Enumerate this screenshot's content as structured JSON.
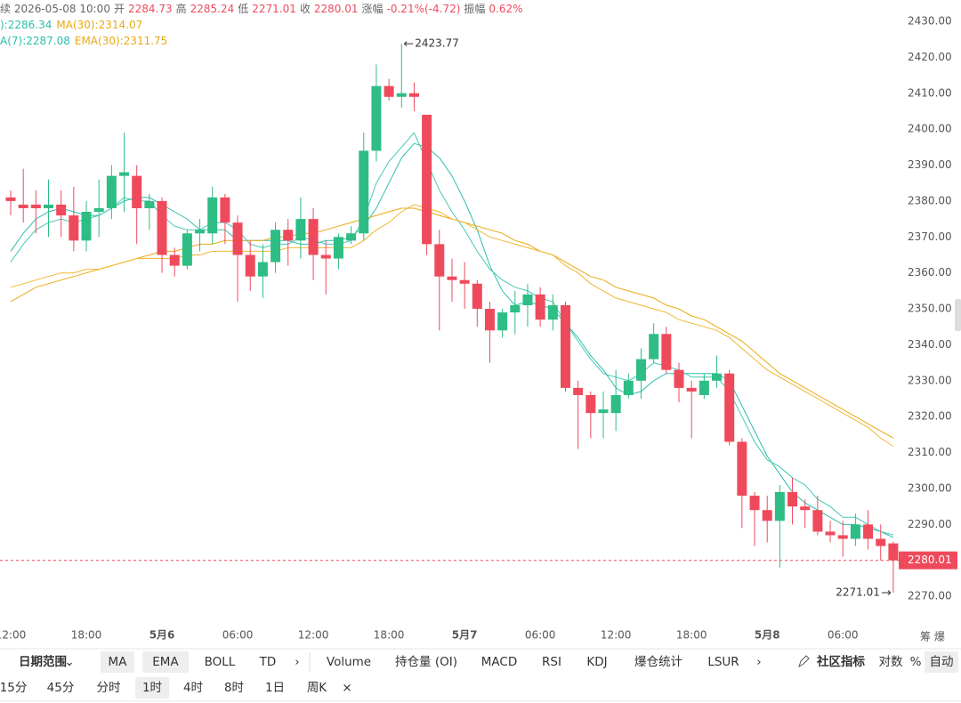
{
  "chart_data": {
    "type": "candlestick",
    "info": {
      "time": "续 2026-05-08 10:00",
      "open_label": "开",
      "high_label": "高",
      "low_label": "低",
      "close_label": "收",
      "change_label": "涨幅",
      "change": "-0.21%(-4.72)",
      "amplitude_label": "振幅",
      "amplitude": "0.62%"
    },
    "legend_rows": [
      [
        {
          "text": "):2286.34",
          "color": "#2cbfae"
        },
        {
          "text": "MA(30):2314.07",
          "color": "#e9a911"
        }
      ],
      [
        {
          "text": "A(7):2287.08",
          "color": "#2cbfae"
        },
        {
          "text": "EMA(30):2311.75",
          "color": "#e9a911"
        }
      ]
    ],
    "categories": [
      "12:00",
      null,
      null,
      null,
      null,
      null,
      "18:00",
      null,
      null,
      null,
      null,
      null,
      "5月6",
      null,
      null,
      null,
      null,
      null,
      "06:00",
      null,
      null,
      null,
      null,
      null,
      "12:00",
      null,
      null,
      null,
      null,
      null,
      "18:00",
      null,
      null,
      null,
      null,
      null,
      "5月7",
      null,
      null,
      null,
      null,
      null,
      "06:00",
      null,
      null,
      null,
      null,
      null,
      "12:00",
      null,
      null,
      null,
      null,
      null,
      "18:00",
      null,
      null,
      null,
      null,
      null,
      "5月8",
      null,
      null,
      null,
      null,
      null,
      "06:00",
      null,
      null,
      null,
      null
    ],
    "open": [
      2381,
      2379,
      2379,
      2378,
      2379,
      2376,
      2369,
      2377,
      2378,
      2387,
      2387,
      2378,
      2380,
      2365,
      2362,
      2371,
      2371,
      2381,
      2374,
      2365,
      2359,
      2363,
      2372,
      2369,
      2375,
      2365,
      2364,
      2369,
      2371,
      2394,
      2412,
      2409,
      2410,
      2404,
      2368,
      2359,
      2358,
      2357,
      2350,
      2344,
      2349,
      2351,
      2354,
      2347,
      2351,
      2328,
      2326,
      2321,
      2321,
      2326,
      2330,
      2336,
      2343,
      2333,
      2328,
      2326,
      2330,
      2332,
      2313,
      2298,
      2294,
      2291,
      2299,
      2295,
      2294,
      2288,
      2287,
      2286,
      2290,
      2286,
      2284.73
    ],
    "high": [
      2383,
      2389,
      2383,
      2386,
      2383,
      2384,
      2380,
      2386,
      2390,
      2399,
      2390,
      2382,
      2381,
      2367,
      2372,
      2375,
      2384,
      2382,
      2376,
      2369,
      2368,
      2374,
      2375,
      2381,
      2378,
      2369,
      2371,
      2373,
      2399,
      2418,
      2414,
      2423.77,
      2413,
      2404,
      2372,
      2364,
      2363,
      2358,
      2352,
      2350,
      2355,
      2357,
      2356,
      2354,
      2352,
      2330,
      2327,
      2327,
      2333,
      2332,
      2339,
      2346,
      2345,
      2335,
      2330,
      2332,
      2337,
      2333,
      2314,
      2299,
      2298,
      2301,
      2303,
      2297,
      2298,
      2291,
      2291,
      2293,
      2294,
      2290,
      2285.24
    ],
    "low": [
      2376,
      2374,
      2371,
      2370,
      2370,
      2366,
      2366,
      2370,
      2375,
      2377,
      2368,
      2372,
      2360,
      2359,
      2361,
      2366,
      2368,
      2368,
      2352,
      2355,
      2353,
      2360,
      2362,
      2364,
      2358,
      2354,
      2361,
      2368,
      2369,
      2391,
      2408,
      2406,
      2405,
      2365,
      2344,
      2352,
      2350,
      2345,
      2335,
      2342,
      2343,
      2345,
      2345,
      2344,
      2327,
      2311,
      2314,
      2314,
      2316,
      2325,
      2325,
      2335,
      2332,
      2324,
      2314,
      2325,
      2328,
      2312,
      2289,
      2284,
      2285,
      2278,
      2290,
      2289,
      2287,
      2285,
      2281,
      2284,
      2283,
      2280,
      2271.01
    ],
    "close": [
      2380,
      2378,
      2378,
      2379,
      2376,
      2369,
      2377,
      2378,
      2387,
      2388,
      2378,
      2380,
      2365,
      2362,
      2371,
      2372,
      2381,
      2374,
      2365,
      2359,
      2363,
      2372,
      2369,
      2375,
      2365,
      2364,
      2370,
      2371,
      2394,
      2412,
      2409,
      2410,
      2409,
      2368,
      2359,
      2358,
      2357,
      2350,
      2344,
      2349,
      2351,
      2354,
      2347,
      2351,
      2328,
      2326,
      2321,
      2322,
      2326,
      2330,
      2336,
      2343,
      2333,
      2328,
      2327,
      2330,
      2332,
      2313,
      2298,
      2294,
      2291,
      2299,
      2295,
      2294,
      2288,
      2287,
      2286,
      2290,
      2286,
      2284,
      2280.01
    ],
    "up_color": "#2ebd85",
    "down_color": "#ef4a5c",
    "series": [
      {
        "color": "#2cbfae",
        "values": [
          2366,
          2371,
          2375,
          2377,
          2378,
          2377,
          2376,
          2376,
          2378,
          2380,
          2381,
          2381,
          2379,
          2377,
          2375,
          2372,
          2372,
          2372,
          2369,
          2369,
          2369,
          2369,
          2369,
          2368,
          2368,
          2369,
          2369,
          2370,
          2373,
          2378,
          2385,
          2392,
          2396,
          2395,
          2392,
          2387,
          2380,
          2372,
          2362,
          2355,
          2351,
          2352,
          2351,
          2350,
          2346,
          2342,
          2337,
          2333,
          2328,
          2326,
          2327,
          2330,
          2332,
          2332,
          2332,
          2332,
          2332,
          2330,
          2323,
          2316,
          2309,
          2304,
          2299,
          2296,
          2294,
          2292,
          2290,
          2290,
          2289,
          2288,
          2286.34
        ]
      },
      {
        "color": "#e9a911",
        "values": [
          2352,
          2354,
          2356,
          2357,
          2358,
          2359,
          2360,
          2361,
          2362,
          2363,
          2364,
          2365,
          2366,
          2366,
          2367,
          2368,
          2368,
          2369,
          2369,
          2369,
          2369,
          2370,
          2370,
          2371,
          2371,
          2372,
          2373,
          2374,
          2375,
          2376,
          2377,
          2378,
          2378,
          2377,
          2376,
          2375,
          2374,
          2373,
          2372,
          2371,
          2369,
          2368,
          2366,
          2365,
          2363,
          2361,
          2359,
          2358,
          2356,
          2355,
          2354,
          2353,
          2351,
          2350,
          2348,
          2347,
          2345,
          2343,
          2341,
          2338,
          2335,
          2332,
          2330,
          2328,
          2326,
          2324,
          2322,
          2320,
          2318,
          2316,
          2314.07
        ]
      },
      {
        "color": "#45c9b8",
        "values": [
          2363,
          2368,
          2372,
          2374,
          2375,
          2374,
          2375,
          2376,
          2378,
          2381,
          2380,
          2380,
          2376,
          2373,
          2372,
          2372,
          2374,
          2374,
          2372,
          2368,
          2367,
          2368,
          2368,
          2370,
          2369,
          2368,
          2368,
          2369,
          2375,
          2385,
          2391,
          2395,
          2399,
          2391,
          2383,
          2377,
          2372,
          2366,
          2361,
          2358,
          2356,
          2355,
          2353,
          2352,
          2346,
          2341,
          2336,
          2332,
          2331,
          2330,
          2332,
          2335,
          2334,
          2333,
          2331,
          2331,
          2331,
          2327,
          2320,
          2313,
          2308,
          2306,
          2303,
          2301,
          2297,
          2295,
          2292,
          2292,
          2290,
          2288,
          2287.08
        ]
      },
      {
        "color": "#f2b632",
        "values": [
          2356,
          2357,
          2358,
          2359,
          2360,
          2360,
          2361,
          2361,
          2362,
          2363,
          2364,
          2364,
          2364,
          2364,
          2365,
          2365,
          2366,
          2366,
          2366,
          2366,
          2366,
          2366,
          2367,
          2367,
          2367,
          2367,
          2367,
          2367,
          2369,
          2372,
          2374,
          2377,
          2379,
          2378,
          2377,
          2375,
          2374,
          2372,
          2370,
          2369,
          2368,
          2367,
          2366,
          2365,
          2362,
          2360,
          2357,
          2355,
          2353,
          2352,
          2351,
          2350,
          2349,
          2347,
          2346,
          2345,
          2344,
          2342,
          2339,
          2336,
          2333,
          2331,
          2329,
          2327,
          2325,
          2323,
          2321,
          2319,
          2317,
          2314,
          2311.75
        ]
      }
    ],
    "ylim": [
      2262.6,
      2435.94
    ],
    "yticks": [
      {
        "value": 2430,
        "label": "2430.00"
      },
      {
        "value": 2420,
        "label": "2420.00"
      },
      {
        "value": 2410,
        "label": "2410.00"
      },
      {
        "value": 2400,
        "label": "2400.00"
      },
      {
        "value": 2390,
        "label": "2390.00"
      },
      {
        "value": 2380,
        "label": "2380.00"
      },
      {
        "value": 2370,
        "label": "2370.00"
      },
      {
        "value": 2360,
        "label": "2360.00"
      },
      {
        "value": 2350,
        "label": "2350.00"
      },
      {
        "value": 2340,
        "label": "2340.00"
      },
      {
        "value": 2330,
        "label": "2330.00"
      },
      {
        "value": 2320,
        "label": "2320.00"
      },
      {
        "value": 2310,
        "label": "2310.00"
      },
      {
        "value": 2300,
        "label": "2300.00"
      },
      {
        "value": 2290,
        "label": "2290.00"
      },
      {
        "value": 2280,
        "label": "2280.00"
      },
      {
        "value": 2270,
        "label": "2270.00"
      }
    ],
    "grid": false,
    "axis_extra": "筹 爆"
  },
  "toolbar": {
    "row1": [
      {
        "label": "日期范围"
      },
      {
        "label": "⌄"
      },
      {
        "label": "MA",
        "selected": true
      },
      {
        "label": "EMA",
        "selected": true
      },
      {
        "label": "BOLL"
      },
      {
        "label": "TD"
      },
      {
        "label": "›"
      },
      {
        "label": "Volume"
      },
      {
        "label": "持仓量 (OI)"
      },
      {
        "label": "MACD"
      },
      {
        "label": "RSI"
      },
      {
        "label": "KDJ"
      },
      {
        "label": "爆仓统计"
      },
      {
        "label": "LSUR"
      },
      {
        "label": "›"
      },
      {
        "label": "社区指标"
      },
      {
        "label": "对数"
      },
      {
        "label": "%"
      },
      {
        "label": "自动",
        "selected": true
      }
    ],
    "row2": [
      {
        "label": "15分"
      },
      {
        "label": "45分"
      },
      {
        "label": "分时"
      },
      {
        "label": "1时",
        "selected": true
      },
      {
        "label": "4时"
      },
      {
        "label": "8时"
      },
      {
        "label": "1日"
      },
      {
        "label": "周K"
      },
      {
        "label": "×"
      }
    ]
  }
}
